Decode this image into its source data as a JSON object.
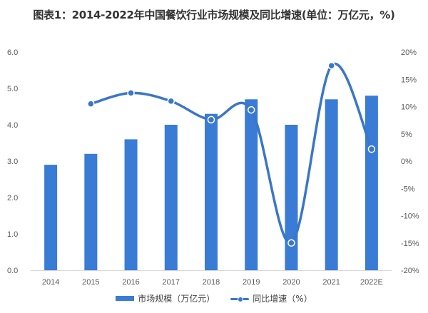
{
  "title": "图表1：2014-2022年中国餐饮行业市场规模及同比增速(单位：万亿元，%)",
  "colors": {
    "bar": "#3a7bd5",
    "line": "#3a76c8",
    "axis": "#d9d9d9",
    "text": "#595959"
  },
  "legend": {
    "bar_label": "市场规模（万亿元）",
    "line_label": "同比增速（%）"
  },
  "chart_data": {
    "type": "bar+line",
    "title": "图表1：2014-2022年中国餐饮行业市场规模及同比增速(单位：万亿元，%)",
    "xlabel": "",
    "ylabel": "市场规模（万亿元）",
    "y2label": "同比增速（%）",
    "categories": [
      "2014",
      "2015",
      "2016",
      "2017",
      "2018",
      "2019",
      "2020",
      "2021",
      "2022E"
    ],
    "series": [
      {
        "name": "市场规模（万亿元）",
        "type": "bar",
        "axis": "left",
        "values": [
          2.9,
          3.2,
          3.6,
          4.0,
          4.3,
          4.7,
          4.0,
          4.7,
          4.8
        ]
      },
      {
        "name": "同比增速（%）",
        "type": "line",
        "axis": "right",
        "smooth": true,
        "values": [
          null,
          10.5,
          12.5,
          11.0,
          7.6,
          9.4,
          -15.0,
          17.5,
          2.2
        ]
      }
    ],
    "ylim": [
      0,
      6
    ],
    "yticks": [
      "0.0",
      "1.0",
      "2.0",
      "3.0",
      "4.0",
      "5.0",
      "6.0"
    ],
    "y2lim": [
      -20,
      20
    ],
    "y2ticks": [
      "-20%",
      "-15%",
      "-10%",
      "-5%",
      "0%",
      "5%",
      "10%",
      "15%",
      "20%"
    ],
    "grid": false,
    "legend_position": "bottom"
  }
}
